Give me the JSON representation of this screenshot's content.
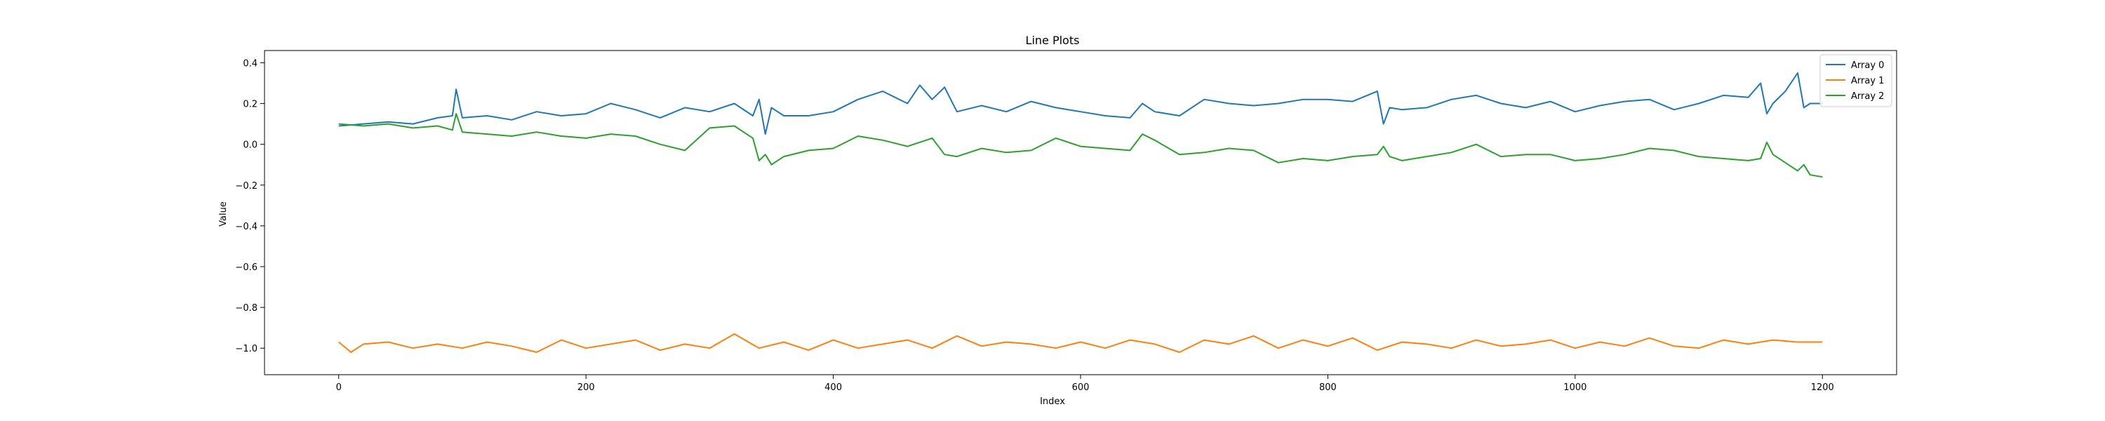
{
  "chart_data": {
    "type": "line",
    "title": "Line Plots",
    "xlabel": "Index",
    "ylabel": "Value",
    "xlim": [
      -60,
      1260
    ],
    "ylim": [
      -1.13,
      0.46
    ],
    "xticks": [
      0,
      200,
      400,
      600,
      800,
      1000,
      1200
    ],
    "xtick_labels": [
      "0",
      "200",
      "400",
      "600",
      "800",
      "1000",
      "1200"
    ],
    "yticks": [
      -1.0,
      -0.8,
      -0.6,
      -0.4,
      -0.2,
      0.0,
      0.2,
      0.4
    ],
    "ytick_labels": [
      "−1.0",
      "−0.8",
      "−0.6",
      "−0.4",
      "−0.2",
      "0.0",
      "0.2",
      "0.4"
    ],
    "grid": false,
    "legend_position": "top-right",
    "series": [
      {
        "name": "Array 0",
        "color": "#1f77b4",
        "x": [
          0,
          20,
          40,
          60,
          80,
          92,
          95,
          100,
          120,
          140,
          160,
          180,
          200,
          220,
          240,
          260,
          280,
          300,
          320,
          335,
          340,
          345,
          350,
          360,
          380,
          400,
          420,
          440,
          460,
          470,
          480,
          490,
          500,
          520,
          540,
          560,
          580,
          600,
          620,
          640,
          650,
          660,
          680,
          700,
          720,
          740,
          760,
          780,
          800,
          820,
          840,
          845,
          850,
          860,
          880,
          900,
          920,
          940,
          960,
          980,
          1000,
          1020,
          1040,
          1060,
          1080,
          1100,
          1120,
          1140,
          1150,
          1155,
          1160,
          1170,
          1180,
          1185,
          1190,
          1200
        ],
        "values": [
          0.09,
          0.1,
          0.11,
          0.1,
          0.13,
          0.14,
          0.27,
          0.13,
          0.14,
          0.12,
          0.16,
          0.14,
          0.15,
          0.2,
          0.17,
          0.13,
          0.18,
          0.16,
          0.2,
          0.14,
          0.22,
          0.05,
          0.18,
          0.14,
          0.14,
          0.16,
          0.22,
          0.26,
          0.2,
          0.29,
          0.22,
          0.28,
          0.16,
          0.19,
          0.16,
          0.21,
          0.18,
          0.16,
          0.14,
          0.13,
          0.2,
          0.16,
          0.14,
          0.22,
          0.2,
          0.19,
          0.2,
          0.22,
          0.22,
          0.21,
          0.26,
          0.1,
          0.18,
          0.17,
          0.18,
          0.22,
          0.24,
          0.2,
          0.18,
          0.21,
          0.16,
          0.19,
          0.21,
          0.22,
          0.17,
          0.2,
          0.24,
          0.23,
          0.3,
          0.15,
          0.2,
          0.26,
          0.35,
          0.18,
          0.2,
          0.2
        ]
      },
      {
        "name": "Array 1",
        "color": "#ff7f0e",
        "x": [
          0,
          10,
          20,
          40,
          60,
          80,
          100,
          120,
          140,
          160,
          180,
          200,
          220,
          240,
          260,
          280,
          300,
          320,
          340,
          360,
          380,
          400,
          420,
          440,
          460,
          480,
          500,
          520,
          540,
          560,
          580,
          600,
          620,
          640,
          660,
          680,
          700,
          720,
          740,
          760,
          780,
          800,
          820,
          840,
          860,
          880,
          900,
          920,
          940,
          960,
          980,
          1000,
          1020,
          1040,
          1060,
          1080,
          1100,
          1120,
          1140,
          1160,
          1180,
          1200
        ],
        "values": [
          -0.97,
          -1.02,
          -0.98,
          -0.97,
          -1.0,
          -0.98,
          -1.0,
          -0.97,
          -0.99,
          -1.02,
          -0.96,
          -1.0,
          -0.98,
          -0.96,
          -1.01,
          -0.98,
          -1.0,
          -0.93,
          -1.0,
          -0.97,
          -1.01,
          -0.96,
          -1.0,
          -0.98,
          -0.96,
          -1.0,
          -0.94,
          -0.99,
          -0.97,
          -0.98,
          -1.0,
          -0.97,
          -1.0,
          -0.96,
          -0.98,
          -1.02,
          -0.96,
          -0.98,
          -0.94,
          -1.0,
          -0.96,
          -0.99,
          -0.95,
          -1.01,
          -0.97,
          -0.98,
          -1.0,
          -0.96,
          -0.99,
          -0.98,
          -0.96,
          -1.0,
          -0.97,
          -0.99,
          -0.95,
          -0.99,
          -1.0,
          -0.96,
          -0.98,
          -0.96,
          -0.97,
          -0.97
        ]
      },
      {
        "name": "Array 2",
        "color": "#2ca02c",
        "x": [
          0,
          20,
          40,
          60,
          80,
          92,
          95,
          100,
          120,
          140,
          160,
          180,
          200,
          220,
          240,
          260,
          280,
          300,
          320,
          335,
          340,
          345,
          350,
          360,
          380,
          400,
          420,
          440,
          460,
          470,
          480,
          490,
          500,
          520,
          540,
          560,
          580,
          600,
          620,
          640,
          650,
          660,
          680,
          700,
          720,
          740,
          760,
          780,
          800,
          820,
          840,
          845,
          850,
          860,
          880,
          900,
          920,
          940,
          960,
          980,
          1000,
          1020,
          1040,
          1060,
          1080,
          1100,
          1120,
          1140,
          1150,
          1155,
          1160,
          1170,
          1180,
          1185,
          1190,
          1200
        ],
        "values": [
          0.1,
          0.09,
          0.1,
          0.08,
          0.09,
          0.07,
          0.15,
          0.06,
          0.05,
          0.04,
          0.06,
          0.04,
          0.03,
          0.05,
          0.04,
          0.0,
          -0.03,
          0.08,
          0.09,
          0.03,
          -0.08,
          -0.05,
          -0.1,
          -0.06,
          -0.03,
          -0.02,
          0.04,
          0.02,
          -0.01,
          0.01,
          0.03,
          -0.05,
          -0.06,
          -0.02,
          -0.04,
          -0.03,
          0.03,
          -0.01,
          -0.02,
          -0.03,
          0.05,
          0.02,
          -0.05,
          -0.04,
          -0.02,
          -0.03,
          -0.09,
          -0.07,
          -0.08,
          -0.06,
          -0.05,
          -0.01,
          -0.06,
          -0.08,
          -0.06,
          -0.04,
          0.0,
          -0.06,
          -0.05,
          -0.05,
          -0.08,
          -0.07,
          -0.05,
          -0.02,
          -0.03,
          -0.06,
          -0.07,
          -0.08,
          -0.07,
          0.01,
          -0.05,
          -0.09,
          -0.13,
          -0.1,
          -0.15,
          -0.16
        ]
      }
    ]
  }
}
